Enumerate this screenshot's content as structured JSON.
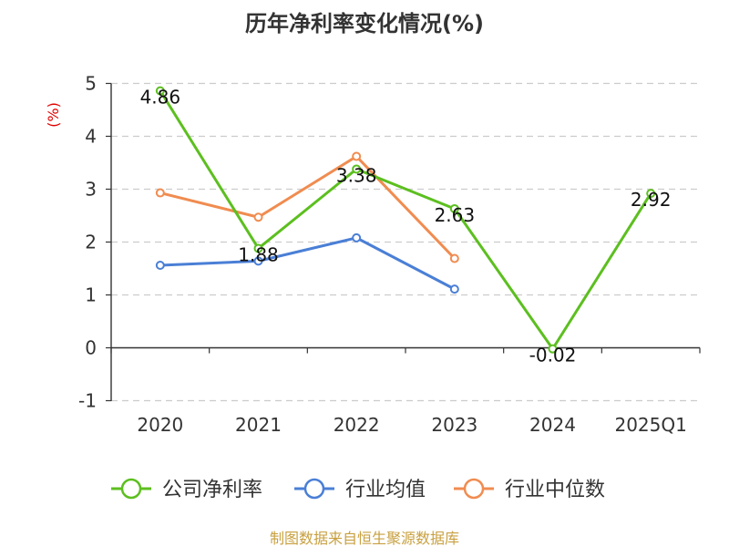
{
  "title": "历年净利率变化情况(%)",
  "source": "制图数据来自恒生聚源数据库",
  "chart_data": {
    "type": "line",
    "title": "历年净利率变化情况(%)",
    "xlabel": "",
    "ylabel": "(%)",
    "categories": [
      "2020",
      "2021",
      "2022",
      "2023",
      "2024",
      "2025Q1"
    ],
    "ylim": [
      -1,
      5
    ],
    "yticks": [
      "-1",
      "0",
      "1",
      "2",
      "3",
      "4",
      "5"
    ],
    "grid": true,
    "legend_position": "bottom",
    "series": [
      {
        "name": "公司净利率",
        "color": "#5cbf1f",
        "values": [
          4.86,
          1.88,
          3.38,
          2.63,
          -0.02,
          2.92
        ],
        "labels": [
          "4.86",
          "1.88",
          "3.38",
          "2.63",
          "-0.02",
          "2.92"
        ]
      },
      {
        "name": "行业均值",
        "color": "#4a7fd6",
        "values": [
          1.56,
          1.64,
          2.08,
          1.11,
          null,
          null
        ]
      },
      {
        "name": "行业中位数",
        "color": "#f08c50",
        "values": [
          2.93,
          2.47,
          3.62,
          1.69,
          null,
          null
        ]
      }
    ]
  }
}
